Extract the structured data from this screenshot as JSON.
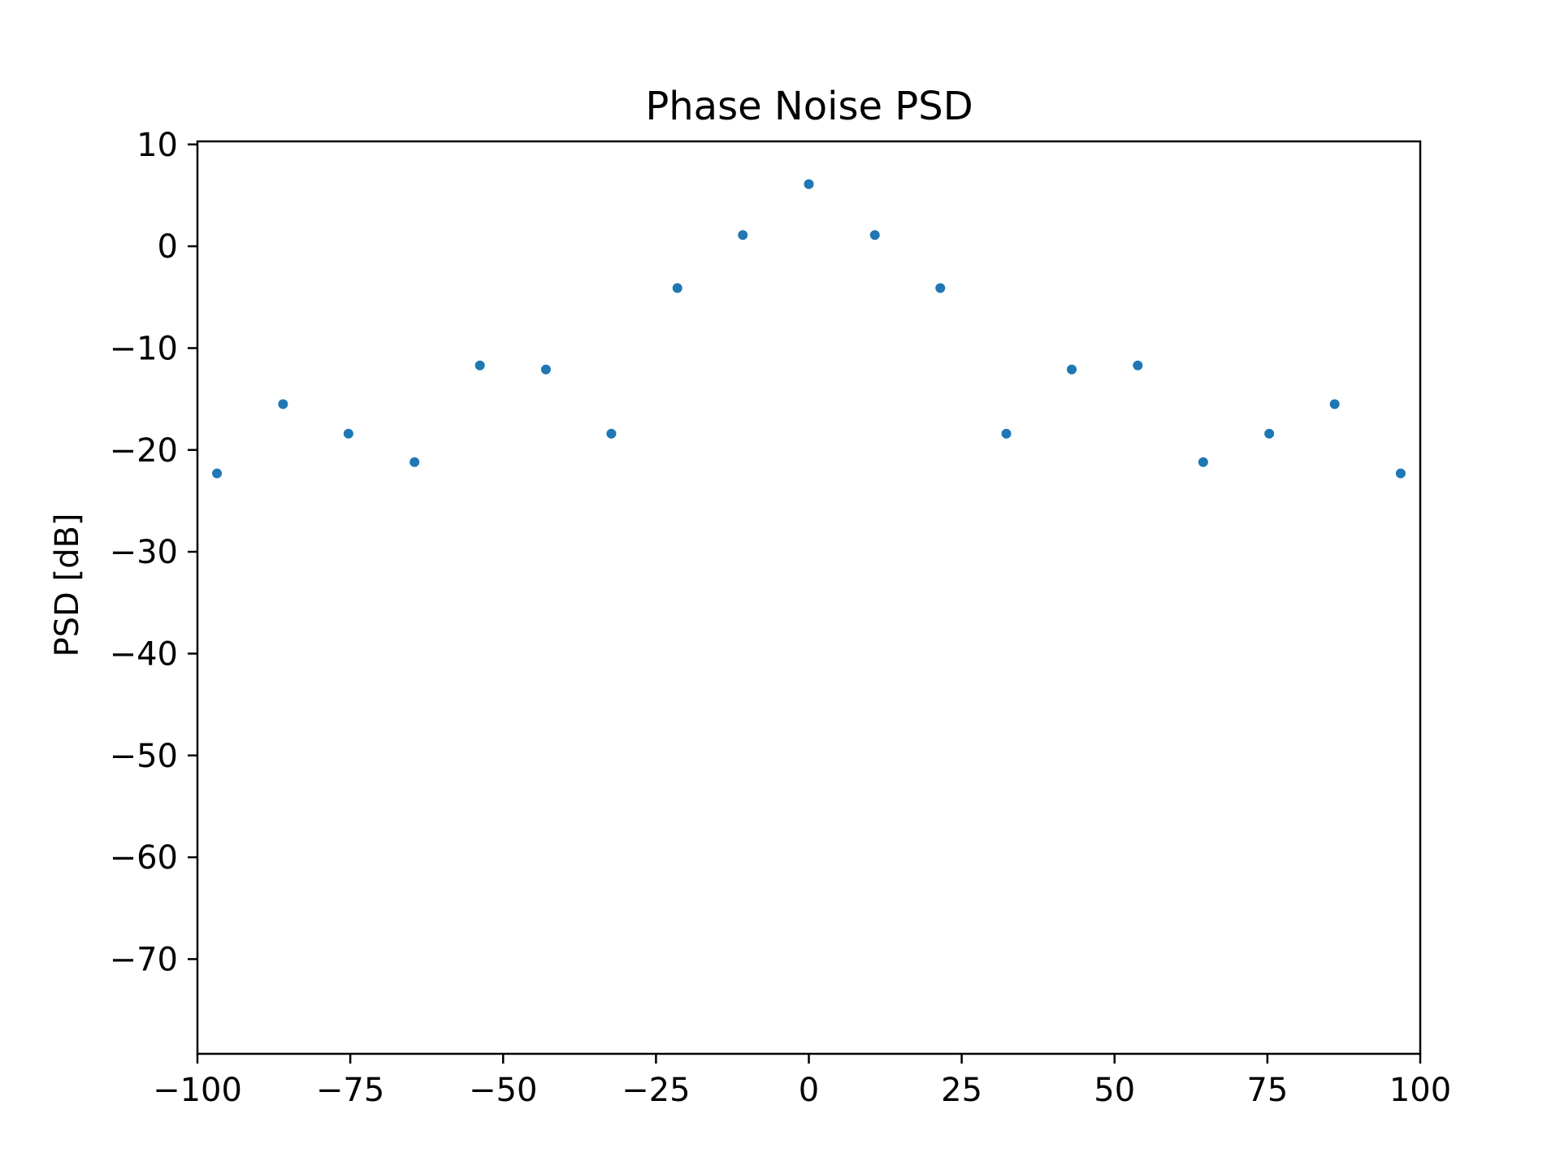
{
  "chart_data": {
    "type": "scatter",
    "title": "Phase Noise PSD",
    "xlabel": "",
    "ylabel": "PSD [dB]",
    "xlim": [
      -100,
      100
    ],
    "ylim": [
      -79.3,
      10.3
    ],
    "xticks": [
      -100,
      -75,
      -50,
      -25,
      0,
      25,
      50,
      75,
      100
    ],
    "xtick_labels": [
      "−100",
      "−75",
      "−50",
      "−25",
      "0",
      "25",
      "50",
      "75",
      "100"
    ],
    "yticks": [
      10,
      0,
      -10,
      -20,
      -30,
      -40,
      -50,
      -60,
      -70
    ],
    "ytick_labels": [
      "10",
      "0",
      "−10",
      "−20",
      "−30",
      "−40",
      "−50",
      "−60",
      "−70"
    ],
    "grid": false,
    "marker_color": "#1f77b4",
    "points": [
      {
        "x": -96.8,
        "y": -22.3
      },
      {
        "x": -86.0,
        "y": -15.5
      },
      {
        "x": -75.3,
        "y": -18.4
      },
      {
        "x": -64.5,
        "y": -21.2
      },
      {
        "x": -53.8,
        "y": -11.7
      },
      {
        "x": -43.0,
        "y": -12.1
      },
      {
        "x": -32.3,
        "y": -18.4
      },
      {
        "x": -21.5,
        "y": -4.1
      },
      {
        "x": -10.8,
        "y": 1.1
      },
      {
        "x": 0.0,
        "y": 6.1
      },
      {
        "x": 10.8,
        "y": 1.1
      },
      {
        "x": 21.5,
        "y": -4.1
      },
      {
        "x": 32.3,
        "y": -18.4
      },
      {
        "x": 43.0,
        "y": -12.1
      },
      {
        "x": 53.8,
        "y": -11.7
      },
      {
        "x": 64.5,
        "y": -21.2
      },
      {
        "x": 75.3,
        "y": -18.4
      },
      {
        "x": 86.0,
        "y": -15.5
      },
      {
        "x": 96.8,
        "y": -22.3
      }
    ]
  }
}
